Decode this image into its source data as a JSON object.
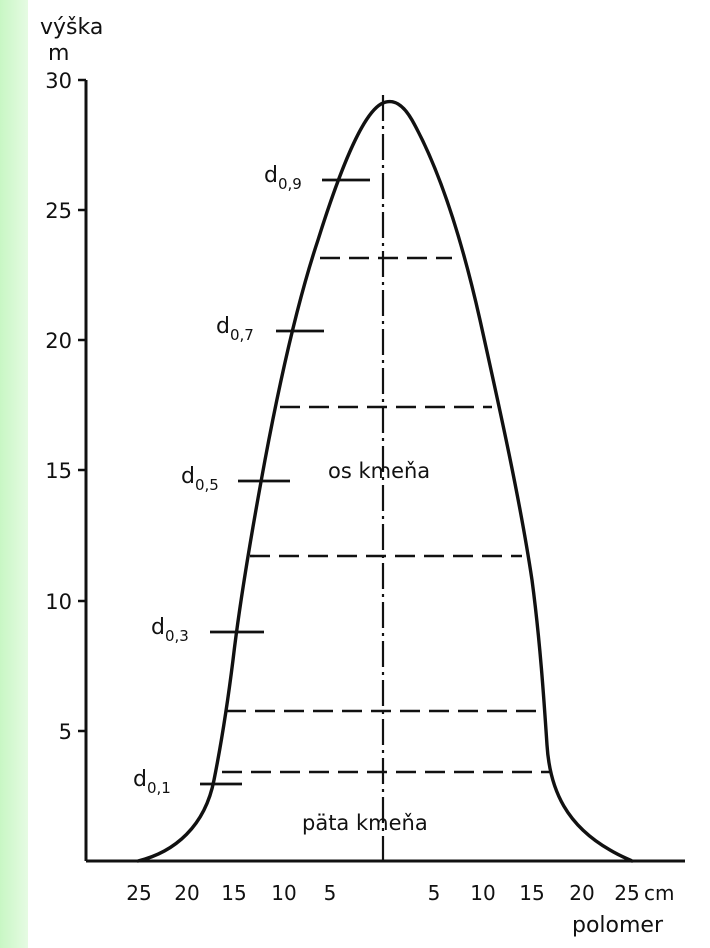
{
  "axes": {
    "y_title": "výška",
    "y_unit": "m",
    "x_unit": "cm",
    "x_title": "polomer",
    "y_ticks": [
      "5",
      "10",
      "15",
      "20",
      "25",
      "30"
    ],
    "x_ticks_left": [
      "25",
      "20",
      "15",
      "10",
      "5"
    ],
    "x_ticks_right": [
      "5",
      "10",
      "15",
      "20",
      "25"
    ]
  },
  "labels": {
    "axis_label": "os kmeňa",
    "base_label": "päta kmeňa"
  },
  "diameters": [
    {
      "base": "d",
      "sub": "0,1"
    },
    {
      "base": "d",
      "sub": "0,3"
    },
    {
      "base": "d",
      "sub": "0,5"
    },
    {
      "base": "d",
      "sub": "0,7"
    },
    {
      "base": "d",
      "sub": "0,9"
    }
  ],
  "colors": {
    "ink": "#111111",
    "background": "#ffffff",
    "strip": "#c8f7c4"
  }
}
